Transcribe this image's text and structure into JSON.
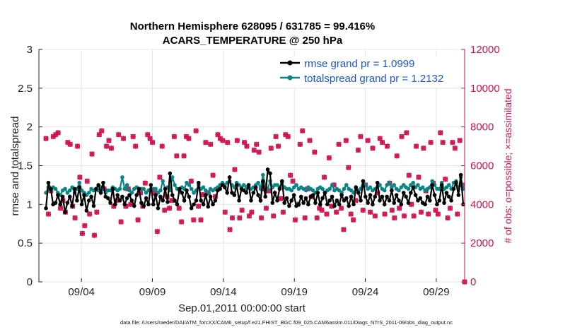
{
  "chart_data": {
    "type": "line",
    "title": "Northern Hemisphere 628095 / 631785 = 99.416%",
    "subtitle": "ACARS_TEMPERATURE @ 250 hPa",
    "xlabel": "Sep.01,2011 00:00:00 start",
    "ylabel_left": "rmse and totalspread",
    "ylabel_right": "# of obs: o=possible; ×=assimilated",
    "footnote": "data file: /Users/raeder/DAI/ATM_forcXX/CAM6_setup/f.e21.FHIST_BGC.f09_025.CAM6assim.011/Diags_NTrS_2011-09/obs_diag_output.nc",
    "x_ticks": [
      "09/04",
      "09/09",
      "09/14",
      "09/19",
      "09/24",
      "09/29"
    ],
    "x_tick_days": [
      4,
      9,
      14,
      19,
      24,
      29
    ],
    "xlim": [
      1,
      31
    ],
    "ylim_left": [
      0,
      3
    ],
    "y_ticks_left": [
      "0",
      "0.5",
      "1",
      "1.5",
      "2",
      "2.5",
      "3"
    ],
    "ylim_right": [
      0,
      12000
    ],
    "y_ticks_right": [
      "0",
      "2000",
      "4000",
      "6000",
      "8000",
      "10000",
      "12000"
    ],
    "legend_position": "top-right",
    "series": [
      {
        "name": "rmse grand pr = 1.0999",
        "color": "#000000",
        "axis": "left",
        "values": [
          0.95,
          1.28,
          1.2,
          1.0,
          1.02,
          1.12,
          1.0,
          1.1,
          0.9,
          1.02,
          1.1,
          0.98,
          1.2,
          1.05,
          1.22,
          1.0,
          1.12,
          0.92,
          1.05,
          1.1,
          0.98,
          1.2,
          1.25,
          1.15,
          1.28,
          1.1,
          1.08,
          1.02,
          1.2,
          1.0,
          1.12,
          1.05,
          1.1,
          1.0,
          1.08,
          1.12,
          1.05,
          0.98,
          1.12,
          1.2,
          1.02,
          0.98,
          1.08,
          1.0,
          1.25,
          1.0,
          1.12,
          0.95,
          1.1,
          1.05,
          1.2,
          1.03,
          1.4,
          1.12,
          1.05,
          1.0,
          1.2,
          1.15,
          1.05,
          1.18,
          1.1,
          0.95,
          1.0,
          1.05,
          1.28,
          1.05,
          1.0,
          1.12,
          0.97,
          1.1,
          1.0,
          1.05,
          1.18,
          1.2,
          1.25,
          1.22,
          1.15,
          1.35,
          1.15,
          1.12,
          1.25,
          1.05,
          1.2,
          1.18,
          1.15,
          1.25,
          1.05,
          1.15,
          1.22,
          1.12,
          1.05,
          1.3,
          1.1,
          1.45,
          1.4,
          1.02,
          1.15,
          1.05,
          1.2,
          1.3,
          1.02,
          1.08,
          0.98,
          1.05,
          1.12,
          0.98,
          1.0,
          1.1,
          1.02,
          1.08,
          1.0,
          1.1,
          1.12,
          1.02,
          1.15,
          1.0,
          1.08,
          1.15,
          1.0,
          1.05,
          1.1,
          0.98,
          1.05,
          1.0,
          1.12,
          1.05,
          1.08,
          0.98,
          1.1,
          1.0,
          1.22,
          1.15,
          1.05,
          1.3,
          1.1,
          1.02,
          1.12,
          1.0,
          1.1,
          1.28,
          1.05,
          1.1,
          1.0,
          1.1,
          1.05,
          1.18,
          1.02,
          1.12,
          1.05,
          1.0,
          1.15,
          1.1,
          1.02,
          1.15,
          1.22,
          1.12,
          1.05,
          1.08,
          1.02,
          1.0,
          1.1,
          1.05,
          1.25,
          1.12,
          1.0,
          1.05,
          1.25,
          1.02,
          1.15,
          1.1,
          1.05,
          1.2,
          1.28,
          1.12,
          1.38,
          1.0
        ]
      },
      {
        "name": "totalspread grand pr = 1.2132",
        "color": "#0a8585",
        "axis": "left",
        "values": [
          1.15,
          1.22,
          1.18,
          1.22,
          1.2,
          1.15,
          1.12,
          1.18,
          1.2,
          1.15,
          1.18,
          1.22,
          1.15,
          1.2,
          1.28,
          1.18,
          1.15,
          1.12,
          1.15,
          1.2,
          1.18,
          1.2,
          1.18,
          1.22,
          1.2,
          1.15,
          1.18,
          1.18,
          1.22,
          1.2,
          1.18,
          1.2,
          1.35,
          1.2,
          1.25,
          1.18,
          1.15,
          1.2,
          1.22,
          1.18,
          1.2,
          1.2,
          1.15,
          1.18,
          1.2,
          1.2,
          1.2,
          1.15,
          1.18,
          1.3,
          1.2,
          1.22,
          1.18,
          1.35,
          1.25,
          1.2,
          1.18,
          1.22,
          1.2,
          1.28,
          1.25,
          1.2,
          1.15,
          1.18,
          1.25,
          1.2,
          1.22,
          1.18,
          1.15,
          1.2,
          1.18,
          1.2,
          1.22,
          1.25,
          1.28,
          1.25,
          1.28,
          1.3,
          1.25,
          1.22,
          1.28,
          1.25,
          1.22,
          1.25,
          1.22,
          1.25,
          1.2,
          1.22,
          1.25,
          1.28,
          1.2,
          1.38,
          1.25,
          1.2,
          1.3,
          1.22,
          1.25,
          1.25,
          1.22,
          1.28,
          1.22,
          1.2,
          1.2,
          1.18,
          1.22,
          1.25,
          1.2,
          1.22,
          1.2,
          1.18,
          1.22,
          1.2,
          1.18,
          1.15,
          1.2,
          1.22,
          1.2,
          1.15,
          1.18,
          1.2,
          1.25,
          1.18,
          1.2,
          1.18,
          1.15,
          1.2,
          1.25,
          1.2,
          1.18,
          1.15,
          1.22,
          1.18,
          1.2,
          1.3,
          1.25,
          1.2,
          1.22,
          1.18,
          1.2,
          1.22,
          1.25,
          1.2,
          1.18,
          1.25,
          1.28,
          1.22,
          1.25,
          1.2,
          1.18,
          1.22,
          1.25,
          1.22,
          1.2,
          1.25,
          1.28,
          1.22,
          1.25,
          1.2,
          1.22,
          1.18,
          1.2,
          1.22,
          1.3,
          1.25,
          1.2,
          1.2,
          1.28,
          1.2,
          1.22,
          1.25,
          1.2,
          1.28,
          1.3,
          1.2,
          1.35,
          1.2
        ]
      },
      {
        "name": "obs possible",
        "color": "#d01050",
        "axis": "right",
        "marker": "o",
        "values": [
          7400,
          3500,
          4700,
          7500,
          7600,
          7700,
          3800,
          4200,
          3600,
          7200,
          7100,
          3900,
          3300,
          7000,
          5400,
          2500,
          2900,
          5200,
          3500,
          6600,
          2400,
          3600,
          7600,
          7800,
          4800,
          7000,
          7300,
          6900,
          3900,
          4200,
          7600,
          3100,
          7400,
          3900,
          4800,
          4000,
          7500,
          7000,
          3200,
          4600,
          3900,
          5100,
          7600,
          7400,
          7200,
          4600,
          2600,
          5400,
          7000,
          3700,
          4400,
          3800,
          4200,
          7500,
          6500,
          3800,
          3100,
          6500,
          7500,
          7400,
          5200,
          3200,
          7800,
          3900,
          3200,
          4500,
          7200,
          4600,
          7100,
          5500,
          4400,
          7600,
          7400,
          7300,
          3600,
          7200,
          2700,
          3300,
          5800,
          7300,
          3300,
          3700,
          7200,
          7000,
          3400,
          3600,
          6800,
          7100,
          6700,
          3300,
          4800,
          3800,
          4700,
          6900,
          3400,
          7500,
          7000,
          4300,
          3600,
          7600,
          7500,
          5500,
          5200,
          3200,
          4000,
          7100,
          7800,
          3300,
          4800,
          7300,
          4400,
          6700,
          3300,
          3800,
          3700,
          5400,
          3500,
          6400,
          3900,
          5000,
          3600,
          7100,
          3800,
          2700,
          7300,
          5900,
          3500,
          3200,
          4200,
          6800,
          7500,
          3700,
          5000,
          7300,
          3600,
          6900,
          3400,
          4600,
          7400,
          7200,
          3500,
          7000,
          5100,
          3700,
          3300,
          6500,
          3800,
          7500,
          3400,
          7700,
          5500,
          4000,
          3400,
          7000,
          5400,
          3600,
          6900,
          4700,
          3500,
          7200,
          5100,
          3700,
          3500,
          7700,
          7200,
          5300,
          3300,
          3800,
          7200,
          6900,
          3500,
          7300,
          5000,
          0
        ],
        "note": "0 at end = final time step"
      },
      {
        "name": "obs assimilated",
        "color": "#d01050",
        "axis": "right",
        "marker": "x",
        "values": [
          7400,
          3500,
          4700,
          7500,
          7600,
          7700,
          3800,
          4200,
          3600,
          7200,
          7100,
          3900,
          3300,
          7000,
          5400,
          2500,
          2900,
          5200,
          3500,
          6600,
          2400,
          3600,
          7600,
          7800,
          4800,
          7000,
          7300,
          6900,
          3900,
          4200,
          7600,
          3100,
          7400,
          3900,
          4800,
          4000,
          7500,
          7000,
          3200,
          4600,
          3900,
          5100,
          7600,
          7400,
          7200,
          4600,
          2600,
          5400,
          7000,
          3700,
          4400,
          3800,
          4200,
          7500,
          6500,
          3800,
          3100,
          6500,
          7500,
          7400,
          5200,
          3200,
          7800,
          3900,
          3200,
          4500,
          7200,
          4600,
          7100,
          5500,
          4400,
          7600,
          7400,
          7300,
          3600,
          7200,
          2700,
          3300,
          5800,
          7300,
          3300,
          3700,
          7200,
          7000,
          3400,
          3600,
          6800,
          7100,
          6700,
          3300,
          4800,
          3800,
          4700,
          6900,
          3400,
          7500,
          7000,
          4300,
          3600,
          7600,
          7500,
          5500,
          5200,
          3200,
          4000,
          7100,
          7800,
          3300,
          4800,
          7300,
          4400,
          6700,
          3300,
          3800,
          3700,
          5400,
          3500,
          6400,
          3900,
          5000,
          3600,
          7100,
          3800,
          2700,
          7300,
          5900,
          3500,
          3200,
          4200,
          6800,
          7500,
          3700,
          5000,
          7300,
          3600,
          6900,
          3400,
          4600,
          7400,
          7200,
          3500,
          7000,
          5100,
          3700,
          3300,
          6500,
          3800,
          7500,
          3400,
          7700,
          5500,
          4000,
          3400,
          7000,
          5400,
          3600,
          6900,
          4700,
          3500,
          7200,
          5100,
          3700,
          3500,
          7700,
          7200,
          5300,
          3300,
          3800,
          7200,
          6900,
          3500,
          7300,
          5000,
          0
        ]
      }
    ]
  }
}
